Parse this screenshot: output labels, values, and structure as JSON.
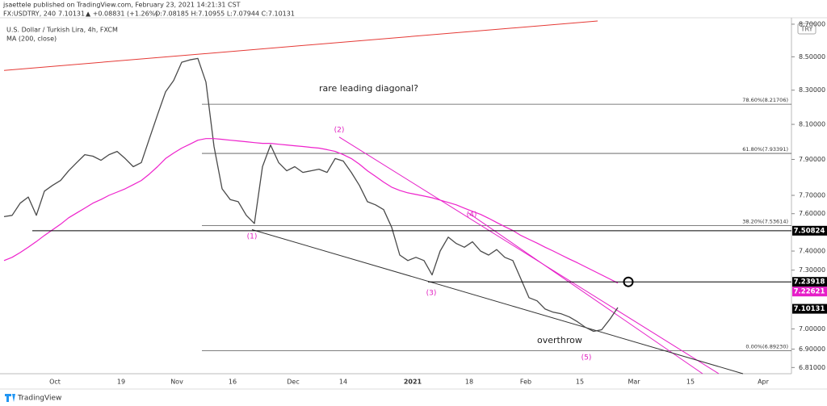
{
  "header": {
    "published": "jsaettele published on TradingView.com, February 23, 2021 14:21:31 CST",
    "symbol": "FX:USDTRY, 240",
    "last": "7.10131",
    "change": "▲ +0.08831 (+1.26%)",
    "ohlc": "O:7.08185 H:7.10955 L:7.07944 C:7.10131",
    "instrument": "U.S. Dollar / Turkish Lira, 4h, FXCM",
    "currency": "TRY"
  },
  "footer": "TradingView",
  "chart_data": {
    "type": "line",
    "log_scale": true,
    "ylim": [
      6.78,
      8.74
    ],
    "yticks": [
      {
        "value": 8.7,
        "label": "8.70000"
      },
      {
        "value": 8.5,
        "label": "8.50000"
      },
      {
        "value": 8.3,
        "label": "8.30000"
      },
      {
        "value": 8.1,
        "label": "8.10000"
      },
      {
        "value": 7.9,
        "label": "7.90000"
      },
      {
        "value": 7.7,
        "label": "7.70000"
      },
      {
        "value": 7.6,
        "label": "7.60000"
      },
      {
        "value": 7.4,
        "label": "7.40000"
      },
      {
        "value": 7.3,
        "label": "7.30000"
      },
      {
        "value": 7,
        "label": "7.00000"
      },
      {
        "value": 6.9,
        "label": "6.90000"
      },
      {
        "value": 6.81,
        "label": "6.81000"
      }
    ],
    "x_labels": [
      "Oct",
      "19",
      "Nov",
      "16",
      "Dec",
      "14",
      "2021",
      "18",
      "Feb",
      "15",
      "Mar",
      "15",
      "Apr"
    ],
    "series": [
      {
        "color": "#4a4a4a",
        "values": [
          7.584,
          7.591,
          7.657,
          7.691,
          7.591,
          7.723,
          7.755,
          7.782,
          7.836,
          7.882,
          7.927,
          7.918,
          7.895,
          7.927,
          7.945,
          7.905,
          7.859,
          7.882,
          8.018,
          8.155,
          8.29,
          8.357,
          8.467,
          8.481,
          8.49,
          8.348,
          7.973,
          7.736,
          7.677,
          7.665,
          7.591,
          7.547,
          7.859,
          7.982,
          7.882,
          7.836,
          7.859,
          7.827,
          7.836,
          7.845,
          7.827,
          7.905,
          7.891,
          7.827,
          7.755,
          7.665,
          7.648,
          7.622,
          7.526,
          7.379,
          7.35,
          7.367,
          7.35,
          7.275,
          7.4,
          7.474,
          7.44,
          7.42,
          7.449,
          7.4,
          7.379,
          7.408,
          7.367,
          7.35,
          7.254,
          7.158,
          7.142,
          7.1,
          7.084,
          7.076,
          7.06,
          7.036,
          7.008,
          6.988,
          6.996,
          7.048,
          7.108
        ]
      },
      {
        "name": "MA (200, close)",
        "color": "#ee22cc",
        "values": [
          7.35,
          7.367,
          7.392,
          7.42,
          7.45,
          7.483,
          7.513,
          7.543,
          7.578,
          7.604,
          7.63,
          7.657,
          7.677,
          7.7,
          7.718,
          7.736,
          7.759,
          7.782,
          7.818,
          7.859,
          7.905,
          7.936,
          7.964,
          7.986,
          8.009,
          8.018,
          8.018,
          8.014,
          8.009,
          8.005,
          8.0,
          7.995,
          7.991,
          7.991,
          7.986,
          7.982,
          7.977,
          7.973,
          7.968,
          7.964,
          7.955,
          7.945,
          7.927,
          7.905,
          7.873,
          7.836,
          7.805,
          7.773,
          7.745,
          7.727,
          7.714,
          7.705,
          7.696,
          7.687,
          7.674,
          7.661,
          7.648,
          7.63,
          7.613,
          7.596,
          7.575,
          7.552,
          7.53,
          7.509,
          7.483,
          7.462,
          7.442,
          7.42,
          7.4,
          7.379,
          7.358,
          7.338,
          7.317,
          7.296,
          7.275,
          7.254,
          7.233
        ]
      }
    ],
    "trendlines": [
      {
        "color": "#e53935",
        "from": 8.418,
        "to": 8.72
      },
      {
        "color": "#e61ec8",
        "from": 8.027,
        "to": 6.78
      },
      {
        "color": "#e61ec8",
        "from": 7.604,
        "to": 6.78
      },
      {
        "color": "#333333",
        "from": 7.514,
        "to": 6.78
      }
    ],
    "levels": [
      {
        "value": 8.21706,
        "label": "78.60%(8.21706)"
      },
      {
        "value": 7.93391,
        "label": "61.80%(7.93391)"
      },
      {
        "value": 7.53614,
        "label": "38.20%(7.53614)"
      },
      {
        "value": 6.8923,
        "label": "0.00%(6.89230)"
      }
    ],
    "price_tags": [
      {
        "value": 7.50824,
        "color": "#000000",
        "line": true
      },
      {
        "value": 7.23918,
        "color": "#000000",
        "line": true
      },
      {
        "value": 7.22621,
        "color": "#e61ec8",
        "line": false
      },
      {
        "value": 7.10131,
        "color": "#000000",
        "line": false
      }
    ],
    "wave_color": "#e020c0",
    "wave_labels": [
      "(1)",
      "(2)",
      "(3)",
      "(4)",
      "(5)"
    ],
    "annotations": [
      "rare leading diagonal?",
      "overthrow"
    ]
  }
}
